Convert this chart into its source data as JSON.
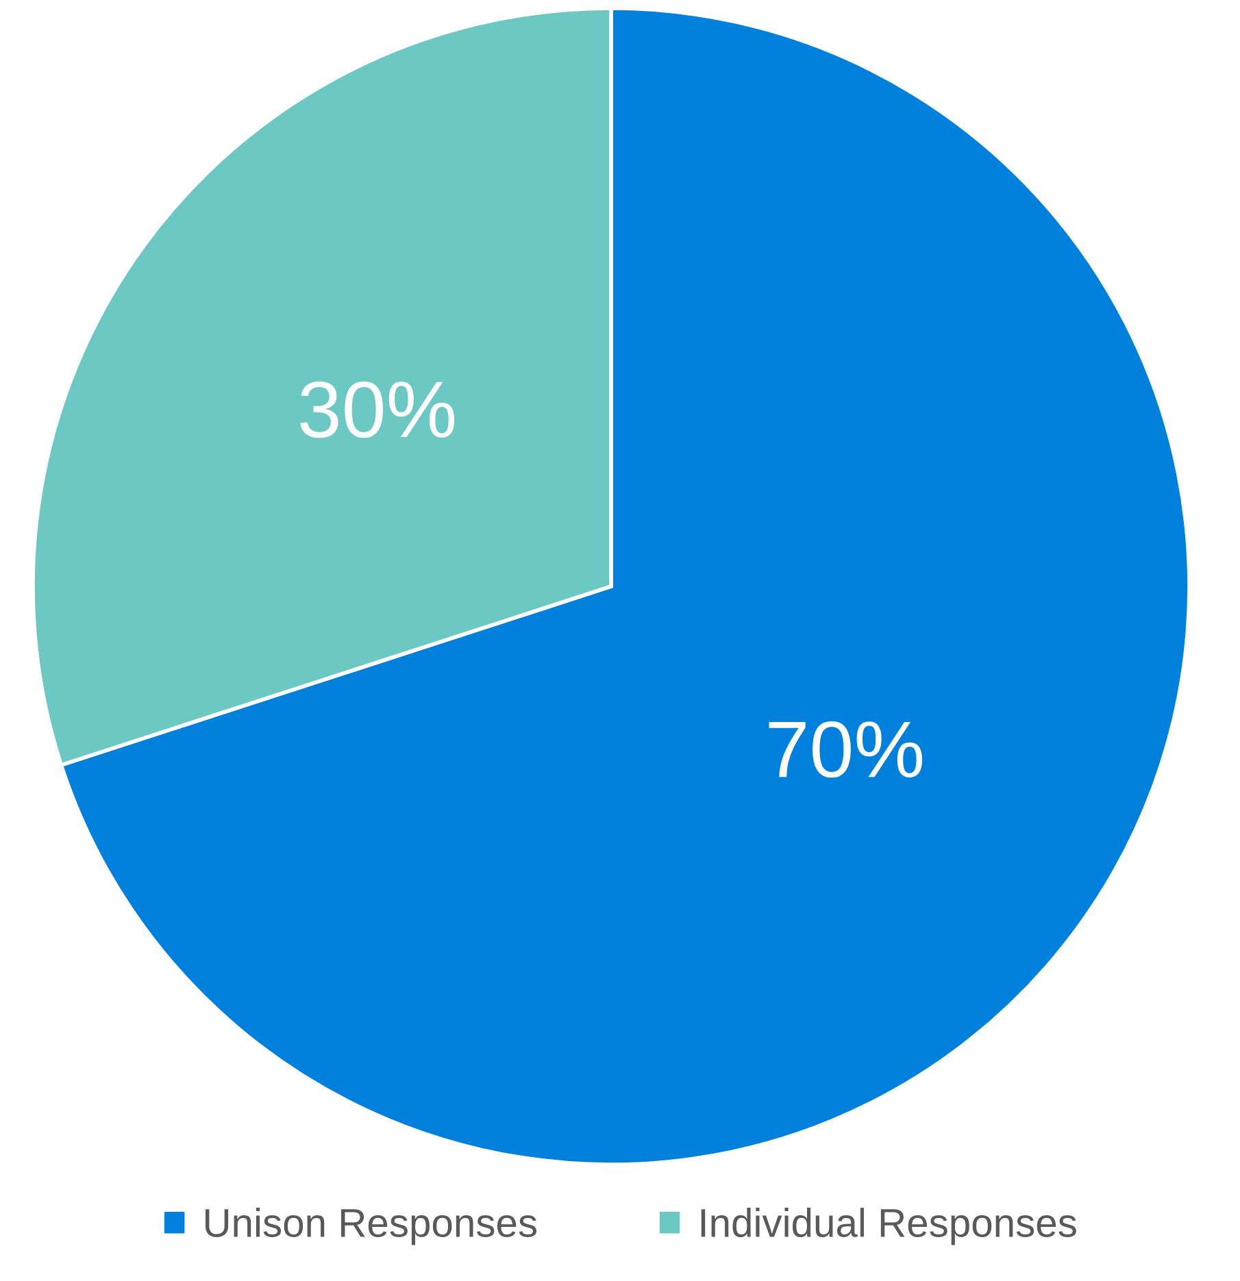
{
  "chart_data": {
    "type": "pie",
    "categories": [
      "Unison Responses",
      "Individual Responses"
    ],
    "values": [
      70,
      30
    ],
    "colors": [
      "#0080dd",
      "#6cc8c3"
    ],
    "value_labels": [
      "70%",
      "30%"
    ],
    "legend": "bottom"
  }
}
